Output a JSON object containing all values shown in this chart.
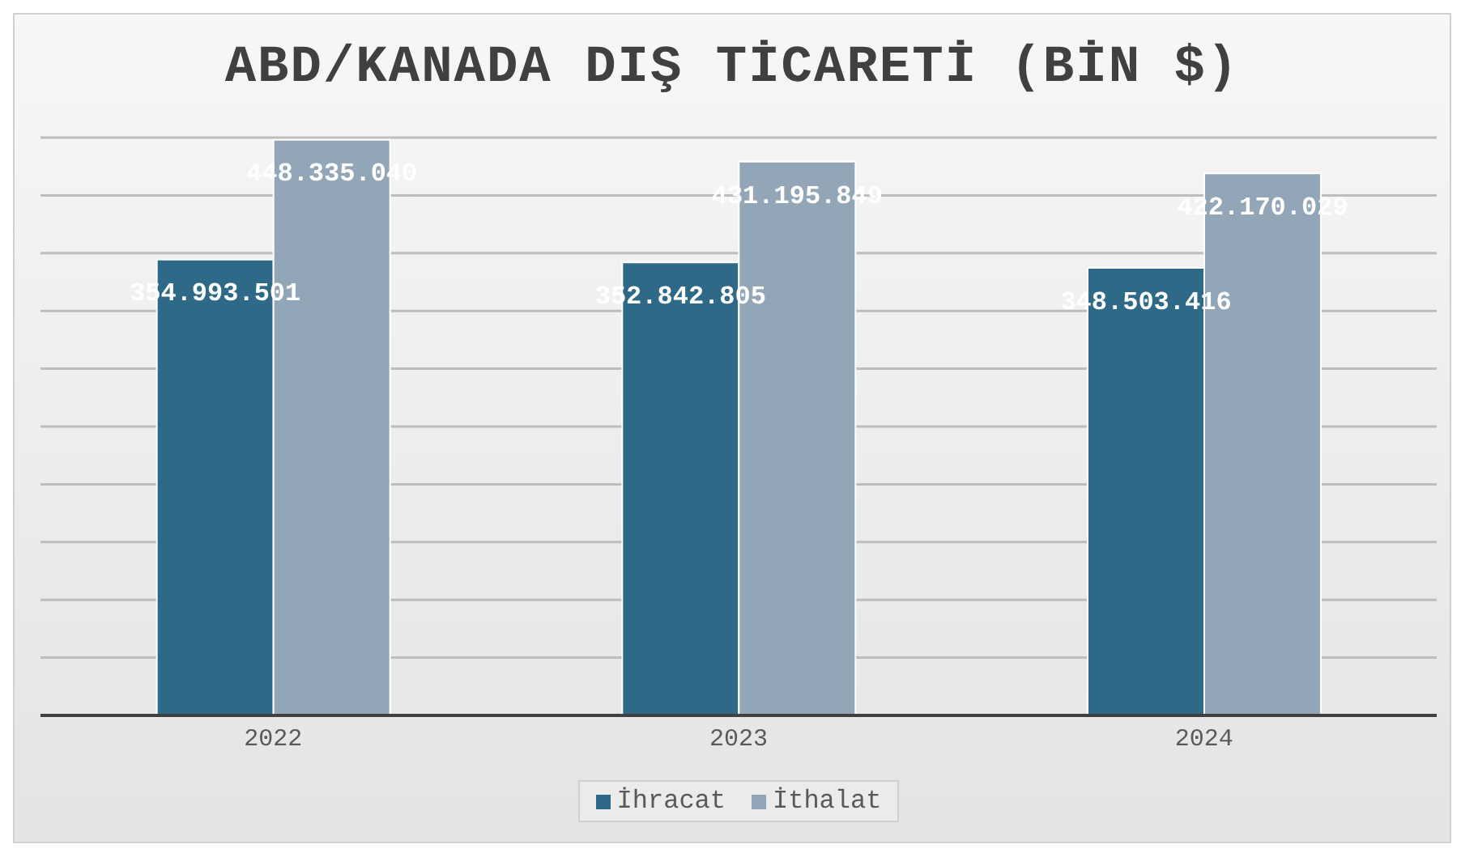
{
  "chart_data": {
    "type": "bar",
    "title": "ABD/KANADA DIŞ TİCARETİ (BİN $)",
    "categories": [
      "2022",
      "2023",
      "2024"
    ],
    "series": [
      {
        "name": "İhracat",
        "color": "#2e6a87",
        "values": [
          354993501,
          352842805,
          348503416
        ],
        "value_labels": [
          "354.993.501",
          "352.842.805",
          "348.503.416"
        ]
      },
      {
        "name": "İthalat",
        "color": "#93a6b7",
        "values": [
          448335040,
          431195849,
          422170029
        ],
        "value_labels": [
          "448.335.040",
          "431.195.849",
          "422.170.029"
        ]
      }
    ],
    "tick_labels": "x",
    "grid": "y",
    "legend": "bottom"
  }
}
